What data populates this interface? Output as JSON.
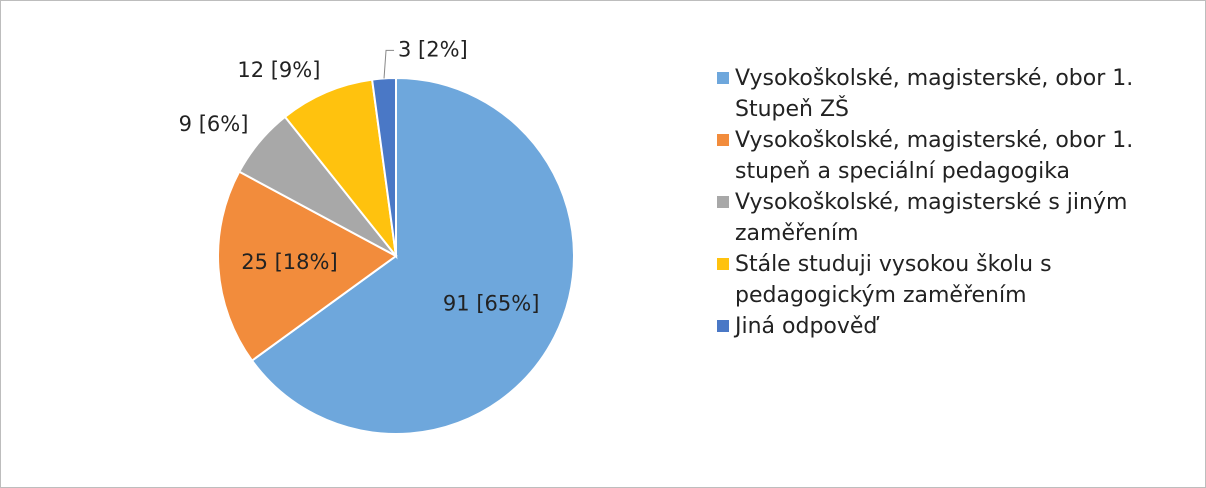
{
  "chart_data": {
    "type": "pie",
    "categories": [
      "Vysokoškolské, magisterské, obor 1. Stupeň ZŠ",
      "Vysokoškolské, magisterské, obor 1. stupeň a speciální pedagogika",
      "Vysokoškolské, magisterské s jiným zaměřením",
      "Stále studuji vysokou školu s pedagogickým zaměřením",
      "Jiná odpověď"
    ],
    "values": [
      91,
      25,
      9,
      12,
      3
    ],
    "value_labels": [
      "91 [65%]",
      "25 [18%]",
      "9 [6%]",
      "12 [9%]",
      "3 [2%]"
    ],
    "colors": [
      "#6ea7dc",
      "#f28c3c",
      "#a8a8a8",
      "#ffc20e",
      "#4a78c6"
    ],
    "legend": "right"
  }
}
